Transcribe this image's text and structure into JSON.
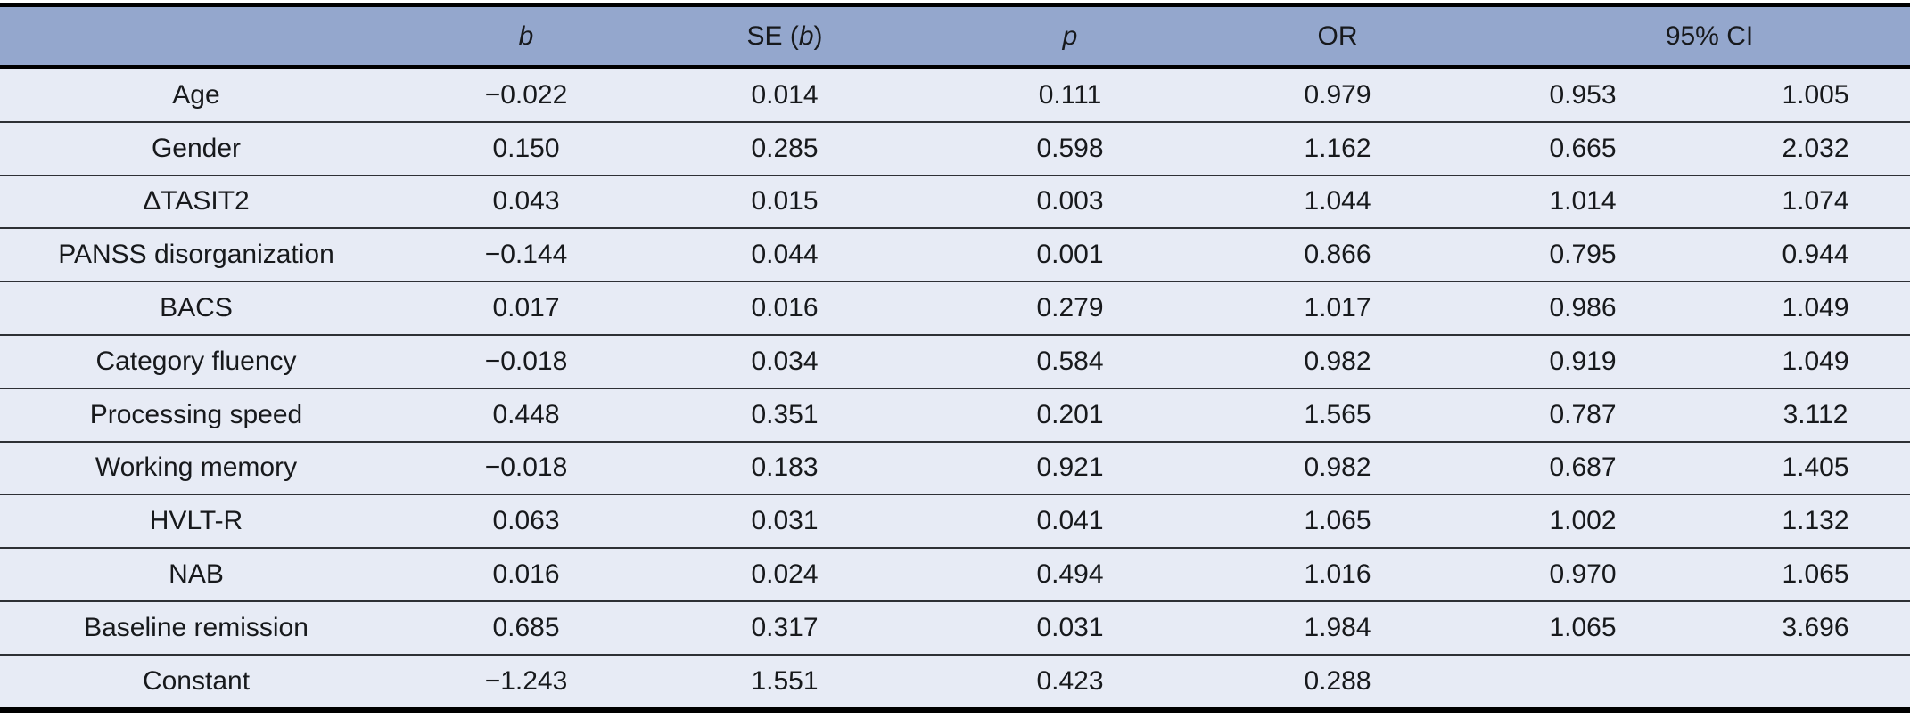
{
  "colors": {
    "header_bg": "#94a7cd",
    "row_bg": "#e7ebf5",
    "rule_heavy": "#000000",
    "rule_light": "#2e3035",
    "text": "#17191c"
  },
  "table": {
    "header": {
      "cols": [
        {
          "segments": [
            {
              "text": "b",
              "italic": true
            }
          ]
        },
        {
          "segments": [
            {
              "text": "SE (",
              "italic": false
            },
            {
              "text": "b",
              "italic": true
            },
            {
              "text": ")",
              "italic": false
            }
          ]
        },
        {
          "segments": [
            {
              "text": "p",
              "italic": true
            }
          ]
        },
        {
          "segments": [
            {
              "text": "OR",
              "italic": false
            }
          ]
        },
        {
          "segments": [
            {
              "text": "95% CI",
              "italic": false
            }
          ],
          "colspan": 2
        }
      ]
    },
    "rows": [
      {
        "label": "Age",
        "b": "−0.022",
        "se": "0.014",
        "p": "0.111",
        "p_bold": false,
        "or": "0.979",
        "ci_low": "0.953",
        "ci_high": "1.005"
      },
      {
        "label": "Gender",
        "b": "0.150",
        "se": "0.285",
        "p": "0.598",
        "p_bold": false,
        "or": "1.162",
        "ci_low": "0.665",
        "ci_high": "2.032"
      },
      {
        "label": "ΔTASIT2",
        "b": "0.043",
        "se": "0.015",
        "p": "0.003",
        "p_bold": true,
        "or": "1.044",
        "ci_low": "1.014",
        "ci_high": "1.074"
      },
      {
        "label": "PANSS disorganization",
        "b": "−0.144",
        "se": "0.044",
        "p": "0.001",
        "p_bold": true,
        "or": "0.866",
        "ci_low": "0.795",
        "ci_high": "0.944"
      },
      {
        "label": "BACS",
        "b": "0.017",
        "se": "0.016",
        "p": "0.279",
        "p_bold": false,
        "or": "1.017",
        "ci_low": "0.986",
        "ci_high": "1.049"
      },
      {
        "label": "Category fluency",
        "b": "−0.018",
        "se": "0.034",
        "p": "0.584",
        "p_bold": false,
        "or": "0.982",
        "ci_low": "0.919",
        "ci_high": "1.049"
      },
      {
        "label": "Processing speed",
        "b": "0.448",
        "se": "0.351",
        "p": "0.201",
        "p_bold": false,
        "or": "1.565",
        "ci_low": "0.787",
        "ci_high": "3.112"
      },
      {
        "label": "Working memory",
        "b": "−0.018",
        "se": "0.183",
        "p": "0.921",
        "p_bold": false,
        "or": "0.982",
        "ci_low": "0.687",
        "ci_high": "1.405"
      },
      {
        "label": "HVLT-R",
        "b": "0.063",
        "se": "0.031",
        "p": "0.041",
        "p_bold": true,
        "or": "1.065",
        "ci_low": "1.002",
        "ci_high": "1.132"
      },
      {
        "label": "NAB",
        "b": "0.016",
        "se": "0.024",
        "p": "0.494",
        "p_bold": false,
        "or": "1.016",
        "ci_low": "0.970",
        "ci_high": "1.065"
      },
      {
        "label": "Baseline remission",
        "b": "0.685",
        "se": "0.317",
        "p": "0.031",
        "p_bold": true,
        "or": "1.984",
        "ci_low": "1.065",
        "ci_high": "3.696"
      },
      {
        "label": "Constant",
        "b": "−1.243",
        "se": "1.551",
        "p": "0.423",
        "p_bold": false,
        "or": "0.288",
        "ci_low": "",
        "ci_high": ""
      }
    ]
  }
}
